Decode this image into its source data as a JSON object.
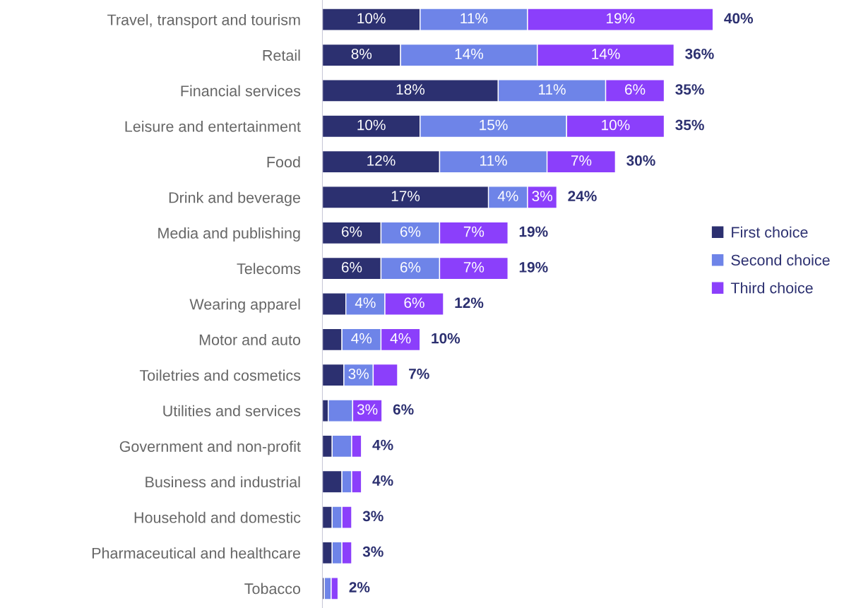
{
  "chart_data": {
    "type": "bar",
    "orientation": "horizontal",
    "stacked": true,
    "legend": "right",
    "grid": false,
    "categories": [
      "Travel, transport and tourism",
      "Retail",
      "Financial services",
      "Leisure and entertainment",
      "Food",
      "Drink and beverage",
      "Media and publishing",
      "Telecoms",
      "Wearing apparel",
      "Motor and auto",
      "Toiletries and cosmetics",
      "Utilities and services",
      "Government and non-profit",
      "Business and industrial",
      "Household and domestic",
      "Pharmaceutical and healthcare",
      "Tobacco"
    ],
    "series": [
      {
        "name": "First choice",
        "color": "#2c3070",
        "values": [
          10,
          8,
          18,
          10,
          12,
          17,
          6,
          6,
          2.4,
          2,
          2.2,
          0.6,
          1,
          2,
          1,
          1,
          0.2
        ],
        "value_labels": [
          "10%",
          "8%",
          "18%",
          "10%",
          "12%",
          "17%",
          "6%",
          "6%",
          null,
          null,
          null,
          null,
          null,
          null,
          null,
          null,
          null
        ]
      },
      {
        "name": "Second choice",
        "color": "#6e84e8",
        "values": [
          11,
          14,
          11,
          15,
          11,
          4,
          6,
          6,
          4,
          4,
          3,
          2.5,
          2,
          1,
          1,
          1,
          0.7
        ],
        "value_labels": [
          "11%",
          "14%",
          "11%",
          "15%",
          "11%",
          "4%",
          "6%",
          "6%",
          "4%",
          "4%",
          "3%",
          null,
          null,
          null,
          null,
          null,
          null
        ]
      },
      {
        "name": "Third choice",
        "color": "#8b3ffb",
        "values": [
          19,
          14,
          6,
          10,
          7,
          3,
          7,
          7,
          6,
          4,
          2.5,
          3,
          1,
          1,
          1,
          1,
          0.7
        ],
        "value_labels": [
          "19%",
          "14%",
          "6%",
          "10%",
          "7%",
          "3%",
          "7%",
          "7%",
          "6%",
          "4%",
          null,
          "3%",
          null,
          null,
          null,
          null,
          null
        ]
      }
    ],
    "totals": [
      "40%",
      "36%",
      "35%",
      "35%",
      "30%",
      "24%",
      "19%",
      "19%",
      "12%",
      "10%",
      "7%",
      "6%",
      "4%",
      "4%",
      "3%",
      "3%",
      "2%"
    ]
  }
}
